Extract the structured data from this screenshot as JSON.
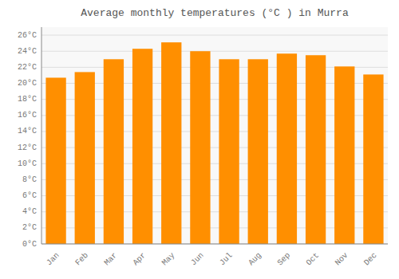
{
  "chart_data": {
    "type": "bar",
    "title": "Average monthly temperatures (°C ) in Murra",
    "categories": [
      "Jan",
      "Feb",
      "Mar",
      "Apr",
      "May",
      "Jun",
      "Jul",
      "Aug",
      "Sep",
      "Oct",
      "Nov",
      "Dec"
    ],
    "values": [
      20.7,
      21.4,
      23.0,
      24.3,
      25.1,
      24.0,
      23.0,
      23.0,
      23.7,
      23.5,
      22.1,
      21.1
    ],
    "color": "#FF8F00",
    "ylim": [
      0,
      27
    ],
    "yticks": [
      {
        "value": 0,
        "label": "0°C"
      },
      {
        "value": 2,
        "label": "2°C"
      },
      {
        "value": 4,
        "label": "4°C"
      },
      {
        "value": 6,
        "label": "6°C"
      },
      {
        "value": 8,
        "label": "8°C"
      },
      {
        "value": 10,
        "label": "10°C"
      },
      {
        "value": 12,
        "label": "12°C"
      },
      {
        "value": 14,
        "label": "14°C"
      },
      {
        "value": 16,
        "label": "16°C"
      },
      {
        "value": 18,
        "label": "18°C"
      },
      {
        "value": 20,
        "label": "20°C"
      },
      {
        "value": 22,
        "label": "22°C"
      },
      {
        "value": 24,
        "label": "24°C"
      },
      {
        "value": 26,
        "label": "26°C"
      }
    ],
    "grid": true
  }
}
